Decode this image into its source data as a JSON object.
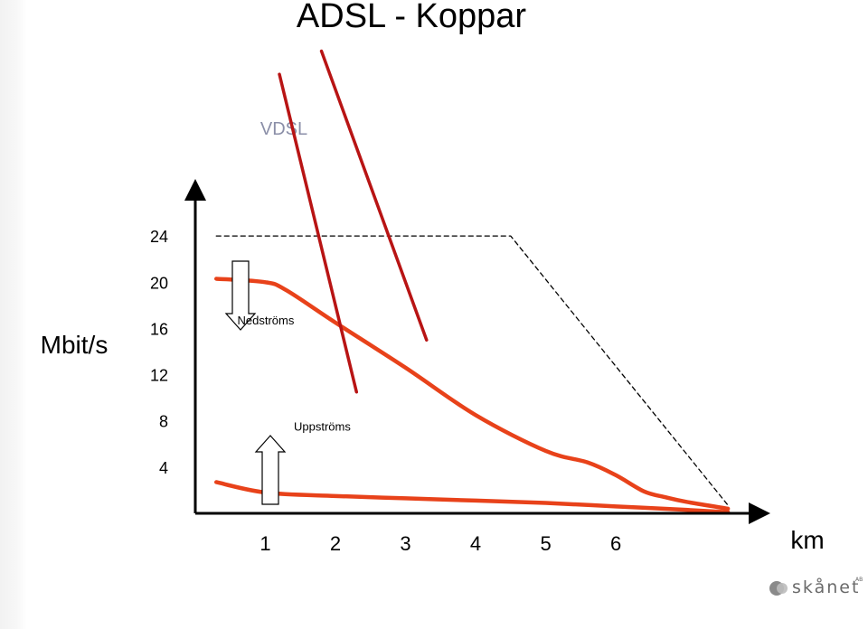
{
  "chart_data": {
    "type": "line",
    "title": "ADSL - Koppar",
    "ylabel": "Mbit/s",
    "xlabel": "km",
    "xlim": [
      0,
      8.05
    ],
    "ylim": [
      0,
      28
    ],
    "x_ticks": [
      "1",
      "2",
      "3",
      "4",
      "5",
      "6"
    ],
    "x_tick_values": [
      1,
      2,
      3,
      4,
      5,
      6
    ],
    "y_ticks": [
      "24",
      "20",
      "16",
      "12",
      "8",
      "4"
    ],
    "y_tick_values": [
      24,
      20,
      16,
      12,
      8,
      4
    ],
    "grid": false,
    "series": [
      {
        "name": "",
        "color": "#e8421a",
        "style": "solid",
        "x": [
          0.3,
          1.0,
          1.3,
          2.0,
          3.0,
          4.0,
          5.0,
          5.6,
          6.0,
          6.4,
          6.7,
          7.0,
          7.6
        ],
        "y": [
          20.3,
          20.0,
          19.3,
          16.5,
          12.6,
          8.5,
          5.4,
          4.4,
          3.3,
          1.9,
          1.4,
          1.0,
          0.4
        ]
      },
      {
        "name": "",
        "color": "#e8421a",
        "style": "solid",
        "x": [
          0.3,
          1.0,
          2.0,
          3.0,
          4.0,
          5.0,
          6.0,
          7.0,
          7.6
        ],
        "y": [
          2.7,
          1.8,
          1.5,
          1.3,
          1.1,
          0.9,
          0.6,
          0.3,
          0.1
        ]
      },
      {
        "name": "",
        "color": "#000000",
        "style": "dashed",
        "x": [
          0.3,
          4.5,
          7.6
        ],
        "y": [
          24.0,
          24.0,
          0.7
        ]
      },
      {
        "name": "",
        "color": "#b81414",
        "style": "solid",
        "x": [
          1.2,
          2.3
        ],
        "y": [
          38.0,
          10.5
        ]
      },
      {
        "name": "",
        "color": "#b81414",
        "style": "solid",
        "x": [
          1.8,
          3.3
        ],
        "y": [
          40.0,
          15.0
        ]
      }
    ],
    "annotations": [
      {
        "id": "downstream",
        "text": "Nedströms",
        "x": 0.6,
        "y": 16.5,
        "arrow": "down"
      },
      {
        "id": "upstream",
        "text": "Uppströms",
        "x": 1.6,
        "y": 7.3,
        "arrow": "up"
      },
      {
        "id": "vdsl",
        "text": "VDSL"
      }
    ]
  },
  "logo": {
    "text": "skånet",
    "sup": "AB"
  }
}
